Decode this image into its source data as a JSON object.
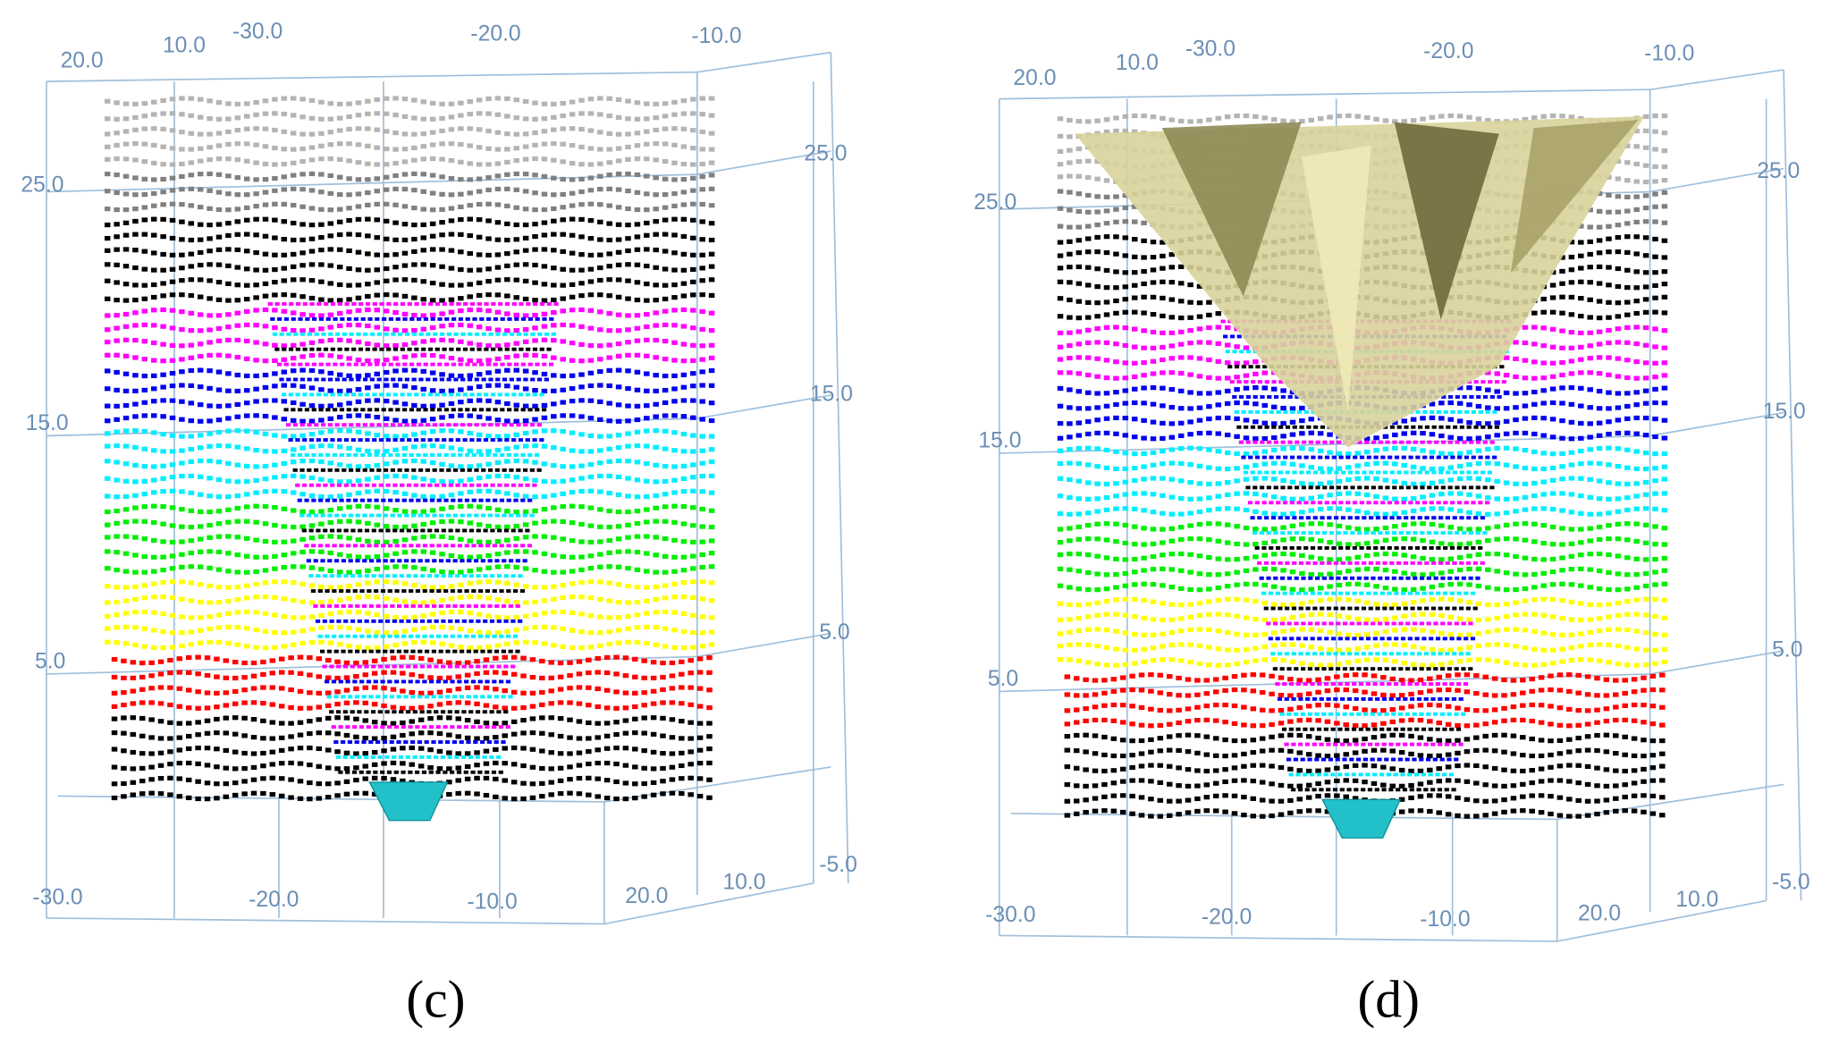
{
  "panels": [
    {
      "label": "(c)",
      "top_axis": [
        "20.0",
        "10.0",
        "-30.0",
        "-20.0",
        "-10.0"
      ],
      "left_axis": [
        "25.0",
        "15.0",
        "5.0"
      ],
      "right_axis": [
        "25.0",
        "15.0",
        "5.0"
      ],
      "bottom_axis": [
        "-30.0",
        "-20.0",
        "-10.0",
        "20.0",
        "10.0",
        "-5.0"
      ]
    },
    {
      "label": "(d)",
      "top_axis": [
        "20.0",
        "10.0",
        "-30.0",
        "-20.0",
        "-10.0"
      ],
      "left_axis": [
        "25.0",
        "15.0",
        "5.0"
      ],
      "right_axis": [
        "25.0",
        "15.0",
        "5.0"
      ],
      "bottom_axis": [
        "-30.0",
        "-20.0",
        "-10.0",
        "20.0",
        "10.0",
        "-5.0"
      ]
    }
  ]
}
